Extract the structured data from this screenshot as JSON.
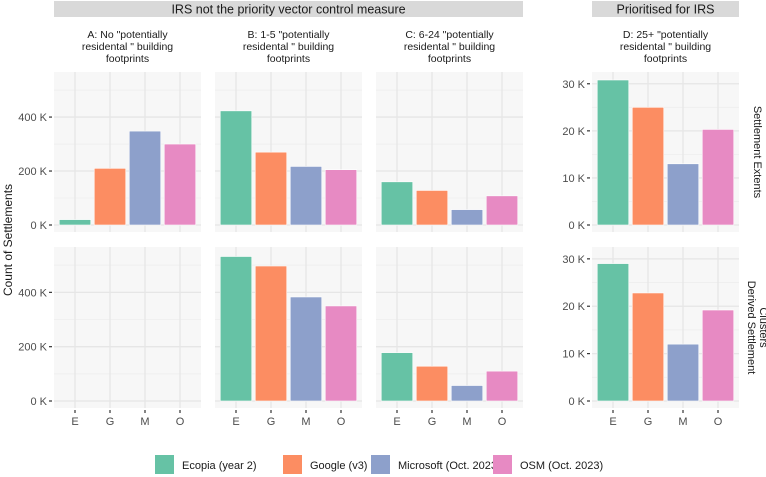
{
  "chart_data": {
    "type": "bar",
    "ylabel": "Count of Settlements",
    "categories": [
      "E",
      "G",
      "M",
      "O"
    ],
    "legend": {
      "placement": "bottom",
      "entries": [
        {
          "label": "Ecopia  (year 2)",
          "color": "#66c2a5"
        },
        {
          "label": "Google (v3)",
          "color": "#fc8d62"
        },
        {
          "label": "Microsoft  (Oct. 2023)",
          "color": "#8da0cb"
        },
        {
          "label": "OSM (Oct. 2023)",
          "color": "#e78ac3"
        }
      ]
    },
    "column_groups": [
      {
        "label": "IRS not the priority vector control measure",
        "columns": [
          0,
          1,
          2
        ]
      },
      {
        "label": "Prioritised for IRS",
        "columns": [
          3
        ]
      }
    ],
    "columns": [
      {
        "title": [
          "A: No \"potentially",
          "residental \" building",
          "footprints"
        ],
        "scale": "left"
      },
      {
        "title": [
          "B: 1-5 \"potentially",
          "residental \" building",
          "footprints"
        ],
        "scale": "left"
      },
      {
        "title": [
          "C: 6-24 \"potentially",
          "residental \" building",
          "footprints"
        ],
        "scale": "left"
      },
      {
        "title": [
          "D: 25+ \"potentially",
          "residental \" building",
          "footprints"
        ],
        "scale": "right"
      }
    ],
    "rows": [
      {
        "label": [
          "Settlement Extents"
        ]
      },
      {
        "label": [
          "Derived Settlement",
          "Clusters"
        ]
      }
    ],
    "scales": {
      "left": {
        "ylim": [
          0,
          567000
        ],
        "ticks": [
          0,
          200000,
          400000
        ],
        "tick_labels": [
          "0 K",
          "200 K",
          "400 K"
        ]
      },
      "right": {
        "ylim": [
          0,
          32500
        ],
        "ticks": [
          0,
          10000,
          20000,
          30000
        ],
        "tick_labels": [
          "0 K",
          "10 K",
          "20 K",
          "30 K"
        ]
      }
    },
    "values": [
      [
        [
          20000,
          210000,
          348000,
          300000
        ],
        [
          423000,
          270000,
          217000,
          205000
        ],
        [
          160000,
          128000,
          57000,
          108000
        ],
        [
          30800,
          25000,
          13000,
          20300
        ]
      ],
      [
        [
          0,
          0,
          0,
          0
        ],
        [
          532000,
          497000,
          383000,
          350000
        ],
        [
          178000,
          128000,
          57000,
          110000
        ],
        [
          29000,
          22800,
          12000,
          19200
        ]
      ]
    ],
    "grid": true
  }
}
